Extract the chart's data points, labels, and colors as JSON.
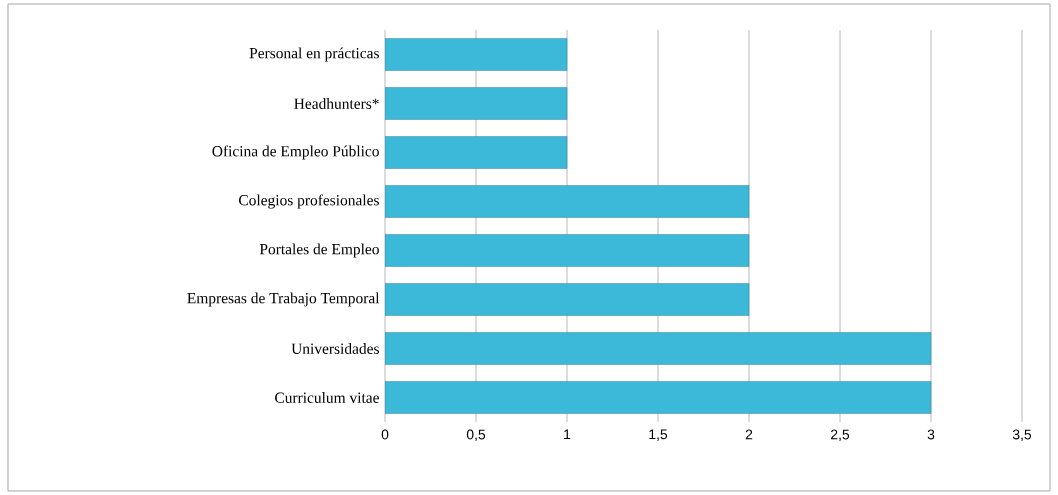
{
  "chart_data": {
    "type": "bar",
    "orientation": "horizontal",
    "categories": [
      "Personal en prácticas",
      "Headhunters*",
      "Oficina de Empleo Público",
      "Colegios profesionales",
      "Portales de Empleo",
      "Empresas de Trabajo Temporal",
      "Universidades",
      "Curriculum vitae"
    ],
    "values": [
      1,
      1,
      1,
      2,
      2,
      2,
      3,
      3
    ],
    "color": "#3cb9d9",
    "xlim": [
      0,
      3.5
    ],
    "xticks": [
      0,
      {
        "value": 0.5,
        "label": "0,5"
      },
      1,
      {
        "value": 1.5,
        "label": "1,5"
      },
      2,
      {
        "value": 2.5,
        "label": "2,5"
      },
      3,
      {
        "value": 3.5,
        "label": "3,5"
      }
    ],
    "grid": "x"
  }
}
